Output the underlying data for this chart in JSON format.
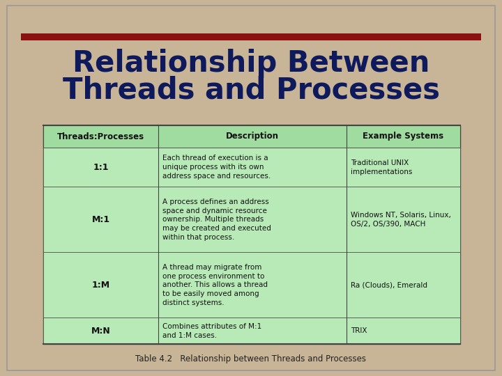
{
  "title_line1": "Relationship Between",
  "title_line2": "Threads and Processes",
  "caption": "Table 4.2   Relationship between Threads and Processes",
  "bg_color": "#c8b496",
  "slide_border_color": "#999999",
  "red_bar_color": "#8b1010",
  "table_bg_color": "#b8eab8",
  "table_header_bg": "#a0dca0",
  "table_border_color": "#444444",
  "white_bg": "#f5f5ea",
  "title_color": "#0f1a5c",
  "header_row": [
    "Threads:Processes",
    "Description",
    "Example Systems"
  ],
  "rows": [
    {
      "col1": "1:1",
      "col2": "Each thread of execution is a\nunique process with its own\naddress space and resources.",
      "col3": "Traditional UNIX\nimplementations"
    },
    {
      "col1": "M:1",
      "col2": "A process defines an address\nspace and dynamic resource\nownership. Multiple threads\nmay be created and executed\nwithin that process.",
      "col3": "Windows NT, Solaris, Linux,\nOS/2, OS/390, MACH"
    },
    {
      "col1": "1:M",
      "col2": "A thread may migrate from\none process environment to\nanother. This allows a thread\nto be easily moved among\ndistinct systems.",
      "col3": "Ra (Clouds), Emerald"
    },
    {
      "col1": "M:N",
      "col2": "Combines attributes of M:1\nand 1:M cases.",
      "col3": "TRIX"
    }
  ]
}
